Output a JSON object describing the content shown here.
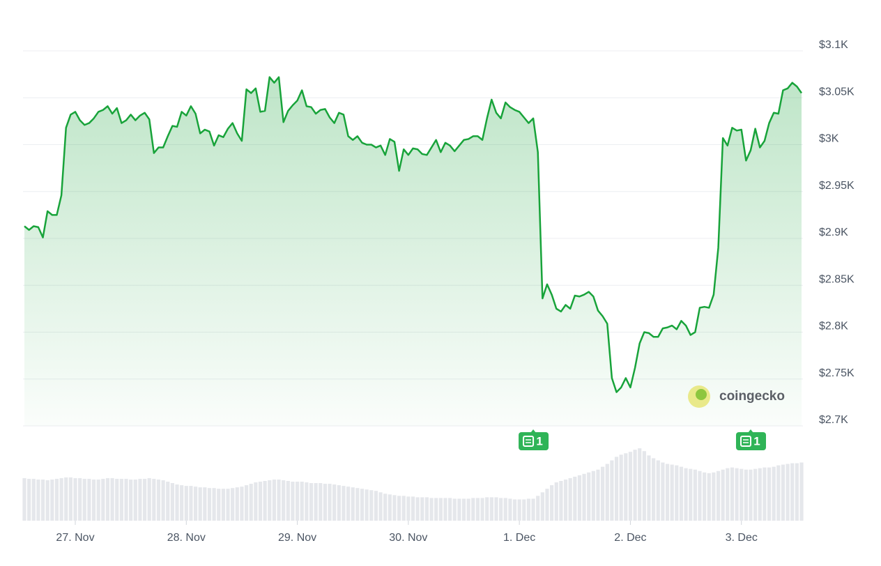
{
  "chart_data": {
    "type": "line",
    "color": "#18a33a",
    "area_fill": true,
    "grid": true,
    "watermark": "coingecko",
    "x": [
      0,
      1,
      2,
      3,
      4,
      5,
      6,
      7,
      8,
      9,
      10,
      11,
      12,
      13,
      14,
      15,
      16,
      17,
      18,
      19,
      20,
      21,
      22,
      23,
      24,
      25,
      26,
      27,
      28,
      29,
      30,
      31,
      32,
      33,
      34,
      35,
      36,
      37,
      38,
      39,
      40,
      41,
      42,
      43,
      44,
      45,
      46,
      47,
      48,
      49,
      50,
      51,
      52,
      53,
      54,
      55,
      56,
      57,
      58,
      59,
      60,
      61,
      62,
      63,
      64,
      65,
      66,
      67,
      68,
      69,
      70,
      71,
      72,
      73,
      74,
      75,
      76,
      77,
      78,
      79,
      80,
      81,
      82,
      83,
      84,
      85,
      86,
      87,
      88,
      89,
      90,
      91,
      92,
      93,
      94,
      95,
      96,
      97,
      98,
      99,
      100,
      101,
      102,
      103,
      104,
      105,
      106,
      107,
      108,
      109,
      110,
      111,
      112,
      113,
      114,
      115,
      116,
      117,
      118,
      119,
      120,
      121,
      122,
      123,
      124,
      125,
      126,
      127,
      128,
      129,
      130,
      131,
      132,
      133,
      134,
      135,
      136,
      137,
      138,
      139,
      140,
      141,
      142,
      143,
      144,
      145,
      146,
      147,
      148,
      149,
      150,
      151,
      152,
      153,
      154,
      155,
      156,
      157,
      158,
      159,
      160,
      161,
      162,
      163,
      164,
      165,
      166,
      167,
      168
    ],
    "series": [
      {
        "name": "Price",
        "color": "#18a33a",
        "values": [
          2913,
          2909,
          2913,
          2912,
          2901,
          2929,
          2925,
          2925,
          2946,
          3018,
          3032,
          3035,
          3026,
          3021,
          3023,
          3028,
          3035,
          3037,
          3041,
          3033,
          3039,
          3023,
          3026,
          3032,
          3026,
          3031,
          3034,
          3027,
          2991,
          2997,
          2997,
          3009,
          3020,
          3019,
          3035,
          3031,
          3041,
          3033,
          3012,
          3016,
          3014,
          2999,
          3010,
          3008,
          3017,
          3023,
          3012,
          3004,
          3059,
          3055,
          3060,
          3035,
          3036,
          3072,
          3066,
          3072,
          3024,
          3036,
          3042,
          3047,
          3058,
          3041,
          3040,
          3033,
          3037,
          3038,
          3029,
          3023,
          3034,
          3032,
          3009,
          3005,
          3009,
          3002,
          3000,
          3000,
          2997,
          2999,
          2989,
          3006,
          3003,
          2972,
          2995,
          2989,
          2996,
          2995,
          2990,
          2989,
          2997,
          3005,
          2992,
          3002,
          2999,
          2993,
          2999,
          3005,
          3006,
          3009,
          3009,
          3005,
          3028,
          3048,
          3034,
          3028,
          3045,
          3040,
          3037,
          3035,
          3029,
          3023,
          3028,
          2992,
          2836,
          2851,
          2840,
          2825,
          2822,
          2829,
          2825,
          2839,
          2838,
          2840,
          2843,
          2838,
          2823,
          2817,
          2809,
          2751,
          2736,
          2741,
          2751,
          2741,
          2762,
          2788,
          2800,
          2799,
          2795,
          2795,
          2804,
          2805,
          2807,
          2803,
          2812,
          2807,
          2797,
          2800,
          2826,
          2827,
          2826,
          2840,
          2890,
          3007,
          2999,
          3018,
          3015,
          3016,
          2983,
          2994,
          3017,
          2997,
          3004,
          3023,
          3034,
          3033,
          3058,
          3060,
          3066,
          3062,
          3055
        ]
      },
      {
        "name": "Volume",
        "color": "#e5e7eb",
        "axis": "volume",
        "values": [
          60,
          59,
          59,
          58,
          58,
          57,
          58,
          59,
          60,
          61,
          61,
          60,
          60,
          59,
          59,
          58,
          58,
          59,
          60,
          60,
          59,
          59,
          59,
          58,
          58,
          59,
          59,
          60,
          59,
          58,
          57,
          55,
          53,
          51,
          50,
          49,
          49,
          48,
          47,
          47,
          46,
          46,
          45,
          45,
          45,
          46,
          47,
          48,
          50,
          52,
          54,
          55,
          56,
          57,
          58,
          58,
          57,
          56,
          55,
          55,
          55,
          54,
          53,
          53,
          53,
          52,
          52,
          51,
          50,
          49,
          48,
          47,
          46,
          45,
          44,
          43,
          42,
          40,
          38,
          37,
          36,
          35,
          35,
          34,
          34,
          33,
          33,
          33,
          32,
          32,
          32,
          32,
          32,
          31,
          31,
          31,
          31,
          32,
          32,
          32,
          33,
          33,
          33,
          32,
          32,
          31,
          30,
          30,
          30,
          31,
          31,
          35,
          40,
          45,
          50,
          54,
          56,
          58,
          60,
          62,
          64,
          66,
          68,
          70,
          72,
          76,
          80,
          85,
          90,
          93,
          95,
          97,
          100,
          102,
          98,
          92,
          88,
          85,
          82,
          80,
          79,
          78,
          76,
          74,
          73,
          72,
          70,
          68,
          67,
          68,
          70,
          72,
          74,
          75,
          74,
          73,
          72,
          72,
          73,
          74,
          75,
          75,
          76,
          78,
          79,
          80,
          81,
          81,
          82
        ]
      }
    ],
    "xlim": [
      0,
      168
    ],
    "xticks": [
      {
        "value": 11,
        "label": "27. Nov"
      },
      {
        "value": 35,
        "label": "28. Nov"
      },
      {
        "value": 59,
        "label": "29. Nov"
      },
      {
        "value": 83,
        "label": "30. Nov"
      },
      {
        "value": 107,
        "label": "1. Dec"
      },
      {
        "value": 131,
        "label": "2. Dec"
      },
      {
        "value": 155,
        "label": "3. Dec"
      }
    ],
    "ylim": [
      2700,
      3100
    ],
    "yticks": [
      {
        "value": 2700,
        "label": "$2.7K"
      },
      {
        "value": 2750,
        "label": "$2.75K"
      },
      {
        "value": 2800,
        "label": "$2.8K"
      },
      {
        "value": 2850,
        "label": "$2.85K"
      },
      {
        "value": 2900,
        "label": "$2.9K"
      },
      {
        "value": 2950,
        "label": "$2.95K"
      },
      {
        "value": 3000,
        "label": "$3K"
      },
      {
        "value": 3050,
        "label": "$3.05K"
      },
      {
        "value": 3100,
        "label": "$3.1K"
      }
    ],
    "volume_lim": [
      0,
      110
    ],
    "annotations": [
      {
        "x": 110,
        "label": "1"
      },
      {
        "x": 157,
        "label": "1"
      }
    ]
  }
}
